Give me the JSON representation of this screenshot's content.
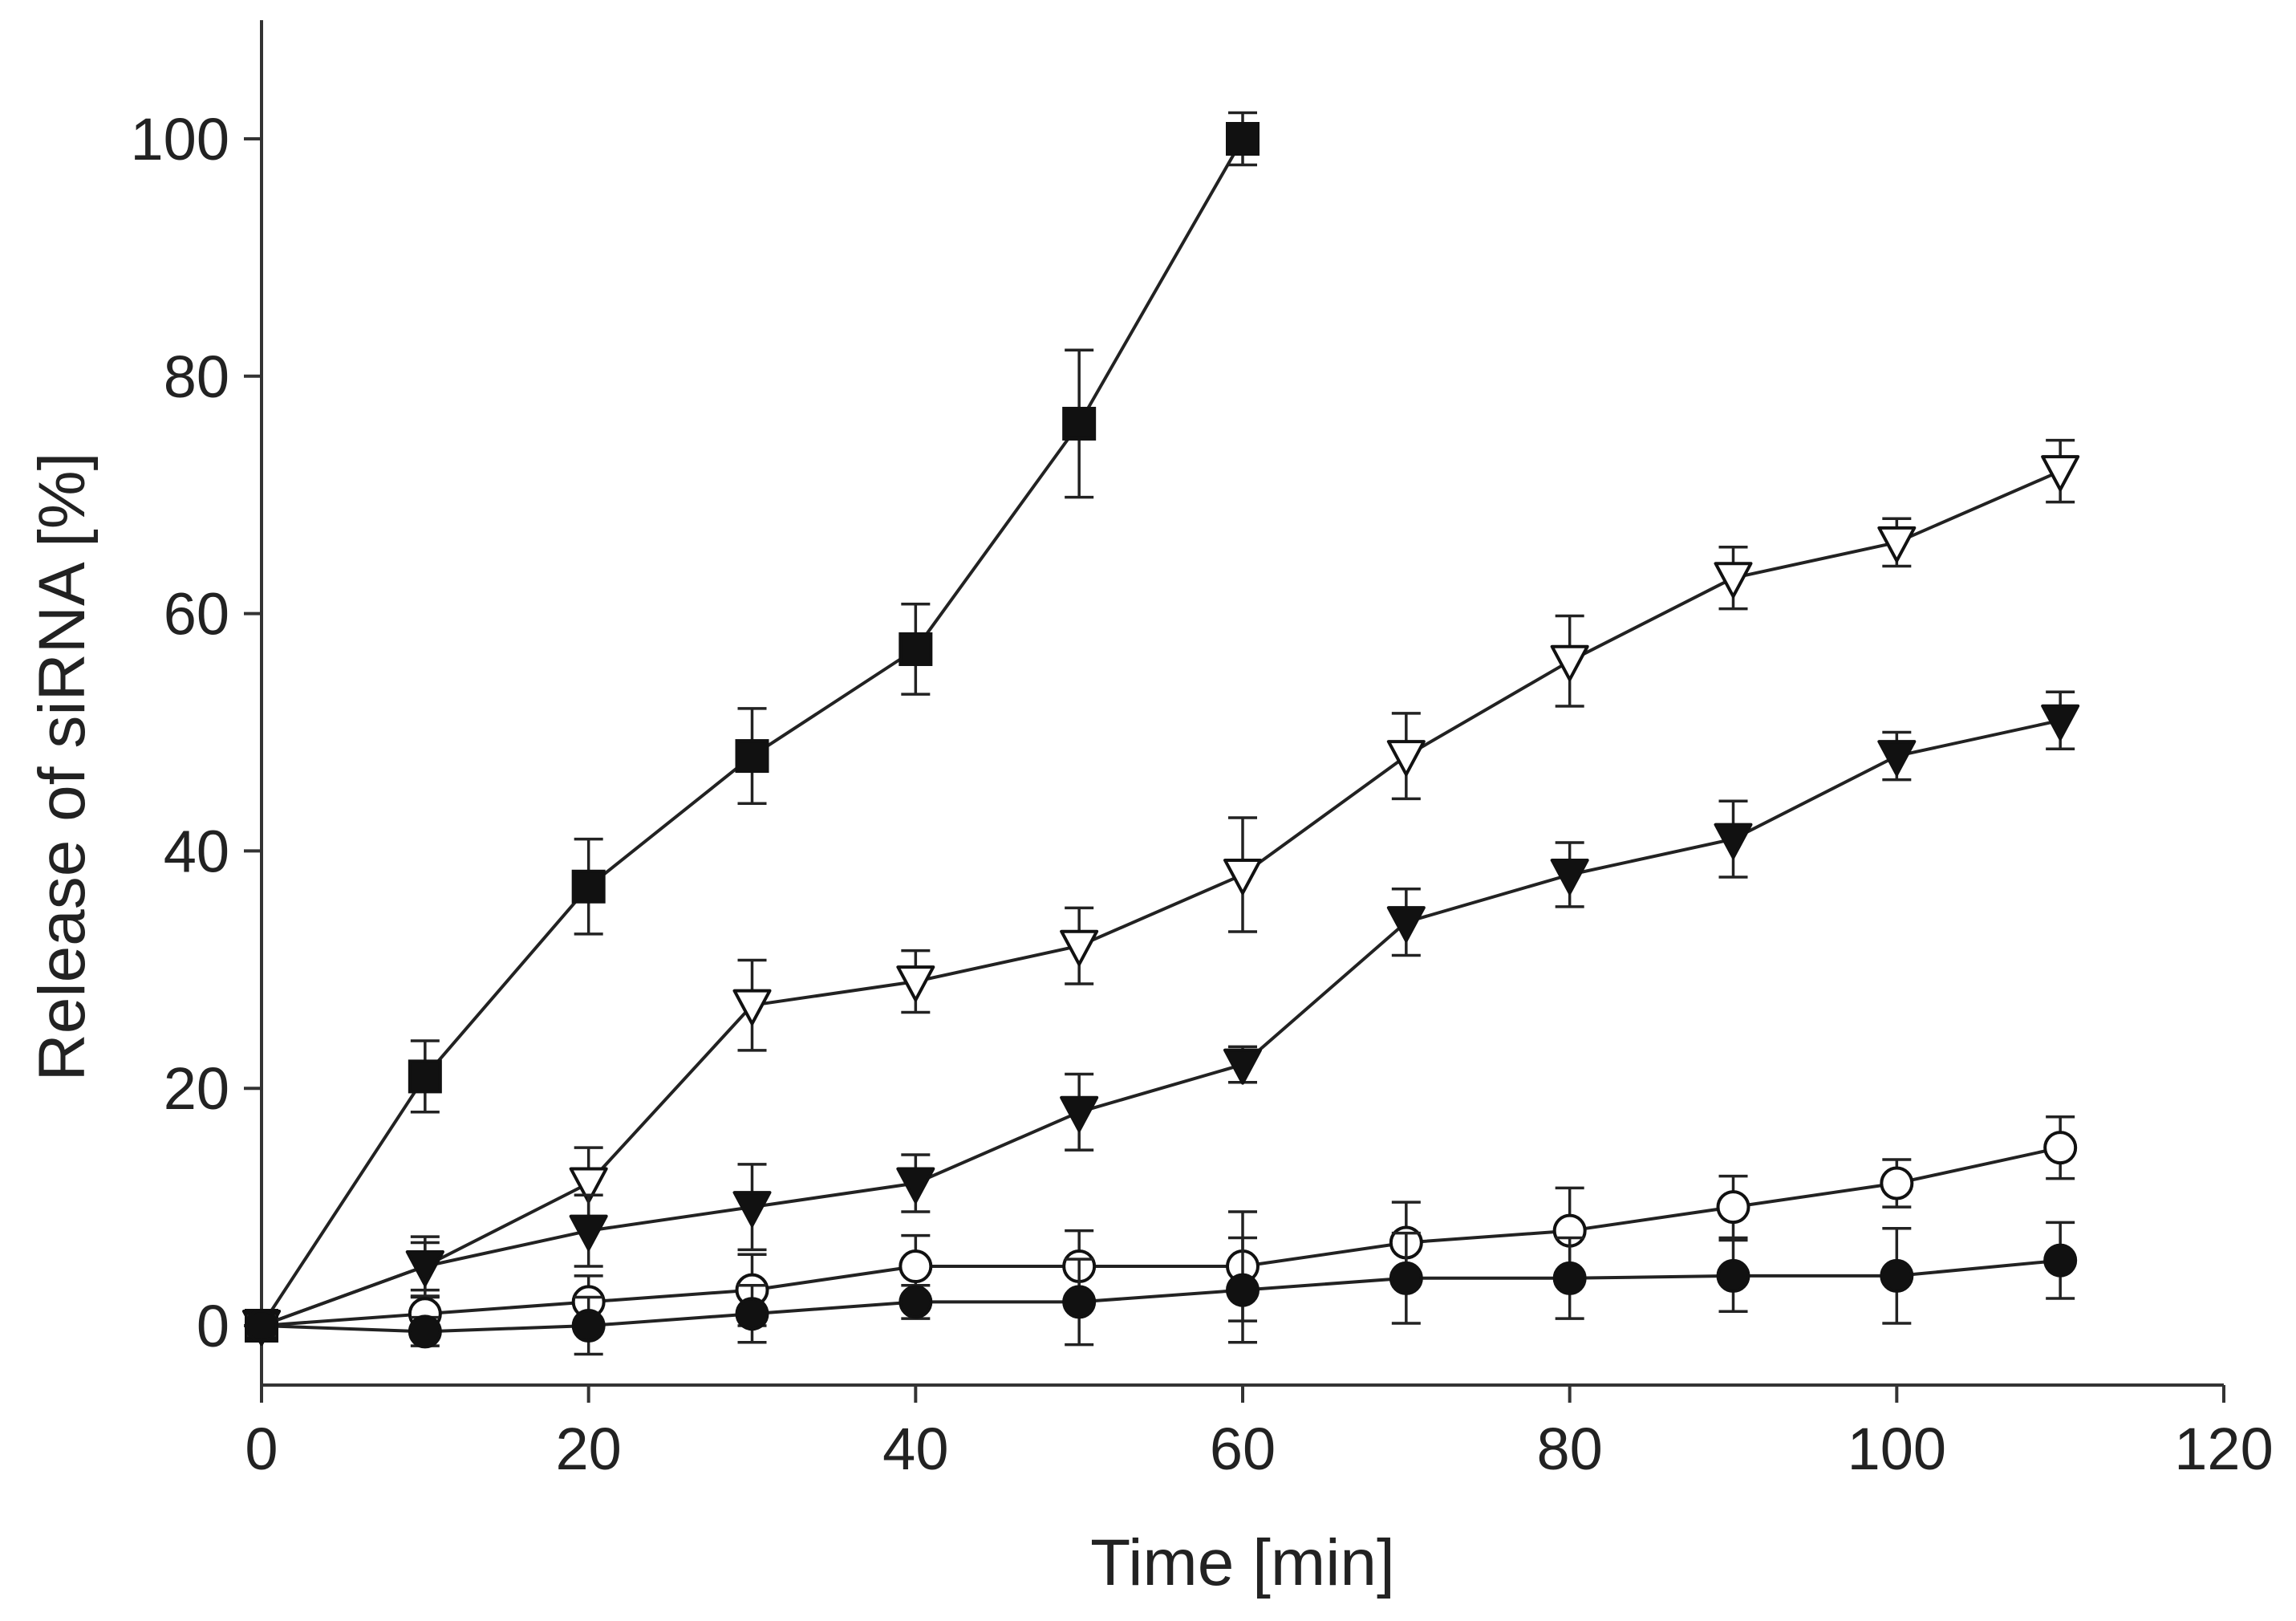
{
  "chart_data": {
    "type": "line",
    "title": "",
    "xlabel": "Time [min]",
    "ylabel": "Release of siRNA [%]",
    "xlim": [
      0,
      120
    ],
    "ylim": [
      -5,
      110
    ],
    "xticks": [
      0,
      20,
      40,
      60,
      80,
      100,
      120
    ],
    "yticks": [
      0,
      20,
      40,
      60,
      80,
      100
    ],
    "xtick_labels": [
      "0",
      "20",
      "40",
      "60",
      "80",
      "100",
      "120"
    ],
    "ytick_labels": [
      "0",
      "20",
      "40",
      "60",
      "80",
      "100"
    ],
    "grid": false,
    "legend": "none",
    "series": [
      {
        "name": "filled squares",
        "marker": "square-filled",
        "x": [
          0,
          10,
          20,
          30,
          40,
          50,
          60
        ],
        "values": [
          0,
          21,
          37,
          48,
          57,
          76,
          100
        ],
        "errors": [
          0.8,
          3,
          4,
          4,
          3.8,
          6.2,
          2.2
        ]
      },
      {
        "name": "open triangles",
        "marker": "triangle-down-open",
        "x": [
          0,
          10,
          20,
          30,
          40,
          50,
          60,
          70,
          80,
          90,
          100,
          110
        ],
        "values": [
          0,
          5,
          12,
          27,
          29,
          32,
          38,
          48,
          56,
          63,
          66,
          72
        ],
        "errors": [
          0.8,
          2.5,
          3,
          3.8,
          2.6,
          3.2,
          4.8,
          3.6,
          3.8,
          2.6,
          2,
          2.6
        ]
      },
      {
        "name": "filled triangles",
        "marker": "triangle-down-filled",
        "x": [
          0,
          10,
          20,
          30,
          40,
          50,
          60,
          70,
          80,
          90,
          100,
          110
        ],
        "values": [
          0,
          5,
          8,
          10,
          12,
          18,
          22,
          34,
          38,
          41,
          48,
          51
        ],
        "errors": [
          0.8,
          2,
          3,
          3.6,
          2.4,
          3.2,
          1.5,
          2.8,
          2.7,
          3.2,
          2,
          2.4
        ]
      },
      {
        "name": "open circles",
        "marker": "circle-open",
        "x": [
          0,
          10,
          20,
          30,
          40,
          50,
          60,
          70,
          80,
          90,
          100,
          110
        ],
        "values": [
          0,
          1,
          2,
          3,
          5,
          5,
          5,
          7,
          8,
          10,
          12,
          15
        ],
        "errors": [
          0.8,
          1.4,
          2.2,
          3,
          2.6,
          3,
          4.6,
          3.4,
          3.6,
          2.6,
          2,
          2.6
        ]
      },
      {
        "name": "filled circles",
        "marker": "circle-filled",
        "x": [
          0,
          10,
          20,
          30,
          40,
          50,
          60,
          70,
          80,
          90,
          100,
          110
        ],
        "values": [
          0,
          -0.5,
          0,
          1,
          2,
          2,
          3,
          4,
          4,
          4.2,
          4.2,
          5.5
        ],
        "errors": [
          0.8,
          1.2,
          2.4,
          2.4,
          1.4,
          3.6,
          4.4,
          3.8,
          3.4,
          3,
          4,
          3.2
        ]
      }
    ],
    "colors": {
      "line": "#222222",
      "marker": "#111111",
      "open_fill": "#ffffff",
      "axis": "#333333"
    }
  }
}
